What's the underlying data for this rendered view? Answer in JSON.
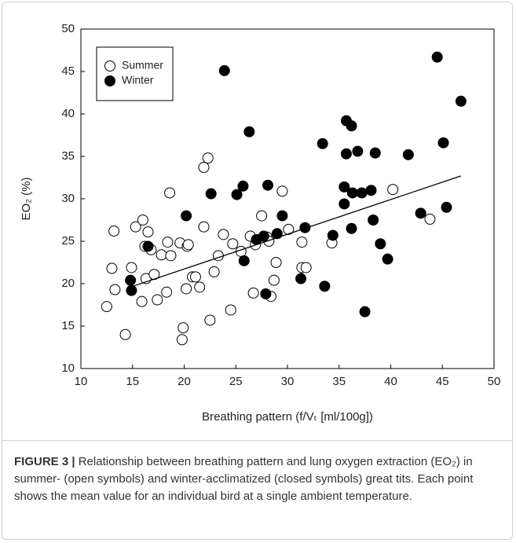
{
  "chart_data": {
    "type": "scatter",
    "xlabel": "Breathing pattern (f/Vₜ [ml/100g])",
    "ylabel": "EO₂ (%)",
    "xlim": [
      10,
      50
    ],
    "xticks": [
      10,
      15,
      20,
      25,
      30,
      35,
      40,
      45,
      50
    ],
    "ylim": [
      10,
      50
    ],
    "yticks": [
      10,
      15,
      20,
      25,
      30,
      35,
      40,
      45,
      50
    ],
    "grid": false,
    "legend": "upper left",
    "series": [
      {
        "name": "Summer",
        "color": "#ffffff",
        "x": [
          12.5,
          13.0,
          13.2,
          13.3,
          14.3,
          14.9,
          15.3,
          15.9,
          16.0,
          16.2,
          16.3,
          16.5,
          16.8,
          17.1,
          17.4,
          17.8,
          18.3,
          18.4,
          18.6,
          18.7,
          19.6,
          19.8,
          19.9,
          20.2,
          20.3,
          20.4,
          20.8,
          21.1,
          21.5,
          21.9,
          21.9,
          22.3,
          22.5,
          22.9,
          23.3,
          23.8,
          24.5,
          24.7,
          25.5,
          26.4,
          26.7,
          26.9,
          27.5,
          28.0,
          28.2,
          28.4,
          28.7,
          28.9,
          29.5,
          30.1,
          31.4,
          31.4,
          31.8,
          34.3,
          40.2,
          43.8
        ],
        "values": [
          17.3,
          21.8,
          26.2,
          19.3,
          14.0,
          21.9,
          26.7,
          17.9,
          27.5,
          24.4,
          20.6,
          26.1,
          24.0,
          21.1,
          18.1,
          23.4,
          19.0,
          24.9,
          30.7,
          23.3,
          24.8,
          13.4,
          14.8,
          19.4,
          24.4,
          24.6,
          20.8,
          20.8,
          19.6,
          26.7,
          33.7,
          34.8,
          15.7,
          21.4,
          23.3,
          25.8,
          16.9,
          24.7,
          23.8,
          25.6,
          18.9,
          24.6,
          28.0,
          25.5,
          25.0,
          18.5,
          20.4,
          22.5,
          30.9,
          26.4,
          24.9,
          21.9,
          21.9,
          24.8,
          31.1,
          27.6
        ]
      },
      {
        "name": "Winter",
        "color": "#000000",
        "x": [
          20.2,
          22.6,
          25.1,
          25.7,
          28.1,
          29.5,
          29.0,
          27.0,
          27.7,
          25.8,
          27.9,
          31.3,
          31.7,
          33.6,
          34.4,
          36.2,
          37.5,
          38.3,
          39.0,
          39.7,
          42.9,
          14.8,
          14.9,
          16.5,
          23.9,
          44.5,
          46.8,
          26.3,
          33.4,
          35.7,
          36.2,
          36.8,
          35.7,
          38.5,
          41.7,
          45.1,
          35.5,
          36.3,
          37.2,
          38.1,
          35.5,
          45.4
        ],
        "values": [
          28.0,
          30.6,
          30.5,
          31.5,
          31.6,
          28.0,
          25.9,
          25.2,
          25.6,
          22.7,
          18.8,
          20.6,
          26.6,
          19.7,
          25.7,
          26.5,
          16.7,
          27.5,
          24.7,
          22.9,
          28.3,
          20.4,
          19.2,
          24.4,
          45.1,
          46.7,
          41.5,
          37.9,
          36.5,
          39.2,
          38.6,
          35.6,
          35.3,
          35.4,
          35.2,
          36.6,
          31.4,
          30.7,
          30.7,
          31.0,
          29.4,
          29.0
        ]
      }
    ],
    "trendline": {
      "color": "#000000",
      "x": [
        14.8,
        46.8
      ],
      "values": [
        19.6,
        32.7
      ]
    }
  },
  "caption": {
    "label": "FIGURE 3 |",
    "text": " Relationship between breathing pattern and lung oxygen extraction (EO₂) in summer- (open symbols) and winter-acclimatized (closed symbols) great tits. Each point shows the mean value for an individual bird at a single ambient temperature."
  }
}
